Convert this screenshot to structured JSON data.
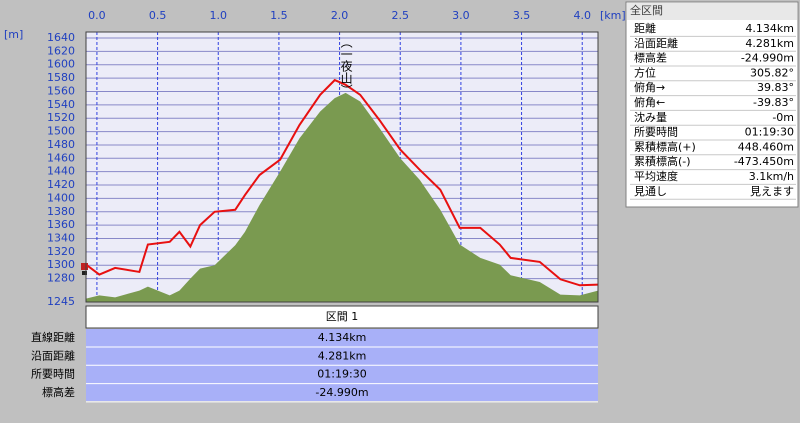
{
  "chart_data": {
    "type": "line",
    "x_unit": "[km]",
    "y_unit": "[m]",
    "annotation": {
      "text": "（一夜山）",
      "x": 2.05
    },
    "x": [
      -0.09,
      0.02,
      0.15,
      0.35,
      0.42,
      0.6,
      0.68,
      0.77,
      0.85,
      0.97,
      1.14,
      1.22,
      1.34,
      1.51,
      1.67,
      1.84,
      1.96,
      2.05,
      2.17,
      2.33,
      2.5,
      2.66,
      2.83,
      2.99,
      3.16,
      3.32,
      3.41,
      3.65,
      3.82,
      3.98,
      4.13
    ],
    "series": [
      {
        "style": "area",
        "color": "#7a9a50",
        "values": [
          1250,
          1255,
          1252,
          1262,
          1268,
          1255,
          1262,
          1280,
          1295,
          1300,
          1330,
          1350,
          1390,
          1440,
          1490,
          1530,
          1550,
          1558,
          1545,
          1505,
          1460,
          1428,
          1383,
          1331,
          1311,
          1301,
          1285,
          1275,
          1256,
          1255,
          1262
        ]
      },
      {
        "style": "line",
        "color": "#e81010",
        "values": [
          1301,
          1286,
          1296,
          1290,
          1331,
          1335,
          1350,
          1328,
          1360,
          1380,
          1383,
          1405,
          1435,
          1458,
          1510,
          1555,
          1577,
          1570,
          1555,
          1517,
          1473,
          1443,
          1413,
          1356,
          1356,
          1331,
          1311,
          1305,
          1279,
          1270,
          1271
        ]
      }
    ],
    "xlim": [
      -0.09,
      4.13
    ],
    "xticks": [
      {
        "value": 0,
        "label": "0.0"
      },
      0.5,
      {
        "value": 1,
        "label": "1.0"
      },
      1.5,
      {
        "value": 2,
        "label": "2.0"
      },
      2.5,
      {
        "value": 3,
        "label": "3.0"
      },
      3.5,
      {
        "value": 4,
        "label": "4.0"
      }
    ],
    "ylim": [
      1245,
      1649
    ],
    "yticks": [
      1245,
      1280,
      1300,
      1320,
      1340,
      1360,
      1380,
      1400,
      1420,
      1440,
      1460,
      1480,
      1500,
      1520,
      1540,
      1560,
      1580,
      1600,
      1620,
      1640
    ],
    "grid": true
  },
  "summary": {
    "title": "全区間",
    "rows": [
      {
        "label": "距離",
        "value": "4.134km"
      },
      {
        "label": "沿面距離",
        "value": "4.281km"
      },
      {
        "label": "標高差",
        "value": "-24.990m"
      },
      {
        "label": "方位",
        "value": "305.82°"
      },
      {
        "label": "俯角→",
        "value": "39.83°"
      },
      {
        "label": "俯角←",
        "value": "-39.83°"
      },
      {
        "label": "沈み量",
        "value": "-0m"
      },
      {
        "label": "所要時間",
        "value": "01:19:30"
      },
      {
        "label": "累積標高(+)",
        "value": "448.460m"
      },
      {
        "label": "累積標高(-)",
        "value": "-473.450m"
      },
      {
        "label": "平均速度",
        "value": "3.1km/h"
      },
      {
        "label": "見通し",
        "value": "見えます"
      }
    ]
  },
  "section": {
    "title": "区間 1",
    "rows": [
      {
        "label": "直線距離",
        "value": "4.134km"
      },
      {
        "label": "沿面距離",
        "value": "4.281km"
      },
      {
        "label": "所要時間",
        "value": "01:19:30"
      },
      {
        "label": "標高差",
        "value": "-24.990m"
      }
    ]
  }
}
